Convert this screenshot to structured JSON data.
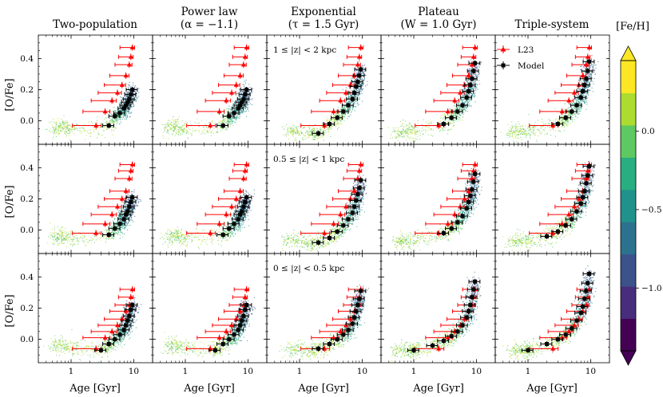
{
  "chart_data": {
    "type": "scatter",
    "figure_layout": {
      "rows": 3,
      "cols": 5,
      "shared_x": true,
      "shared_y": true
    },
    "column_titles": [
      [
        "Two-population"
      ],
      [
        "Power law",
        "(α = −1.1)"
      ],
      [
        "Exponential",
        "(τ = 1.5 Gyr)"
      ],
      [
        "Plateau",
        "(W = 1.0 Gyr)"
      ],
      [
        "Triple-system"
      ]
    ],
    "row_annotations": [
      "1 ≤ |z| < 2 kpc",
      "0.5 ≤ |z| < 1 kpc",
      "0 ≤ |z| < 0.5 kpc"
    ],
    "xlabel": "Age [Gyr]",
    "ylabel": "[O/Fe]",
    "xscale": "log",
    "xlim": [
      0.3,
      20
    ],
    "ylim": [
      -0.15,
      0.55
    ],
    "xticks": [
      1,
      10
    ],
    "xticklabels": [
      "1",
      "10"
    ],
    "yticks": [
      0.0,
      0.2,
      0.4
    ],
    "yticklabels": [
      "0.0",
      "0.2",
      "0.4"
    ],
    "legend": {
      "location": "top-right of column 5, row 1",
      "entries": [
        {
          "label": "L23",
          "color": "#ff0000",
          "marker": "triangle"
        },
        {
          "label": "Model",
          "color": "#000000",
          "marker": "square"
        }
      ]
    },
    "colorbar": {
      "label": "[Fe/H]",
      "range": [
        -1.4,
        0.45
      ],
      "ticks": [
        0.0,
        -0.5,
        -1.0
      ],
      "ticklabels": [
        "0.0",
        "−0.5",
        "−1.0"
      ],
      "colors": [
        "#440154",
        "#472d7b",
        "#3b528b",
        "#2c728e",
        "#21918c",
        "#28ae80",
        "#5ec962",
        "#addc30",
        "#fde725"
      ],
      "extend": "both"
    },
    "series": [
      {
        "name": "L23",
        "color": "#ff0000",
        "ages": [
          9.5,
          9.0,
          8.5,
          7.5,
          6.5,
          5.5,
          4.5,
          3.5,
          2.5
        ],
        "errors": [
          0.25,
          0.25,
          0.3,
          0.35,
          0.4,
          0.45,
          0.5,
          0.55,
          0.6
        ],
        "rows": [
          [
            0.47,
            0.41,
            0.36,
            0.29,
            0.23,
            0.18,
            0.13,
            0.06,
            -0.03
          ],
          [
            0.42,
            0.38,
            0.33,
            0.25,
            0.2,
            0.15,
            0.1,
            0.04,
            -0.02
          ],
          [
            0.32,
            0.27,
            0.22,
            0.18,
            0.13,
            0.09,
            0.05,
            0.01,
            -0.06
          ]
        ]
      },
      {
        "name": "Model",
        "color": "#000000",
        "ages": [
          9.5,
          9.0,
          8.5,
          8.0,
          7.5,
          7.0,
          6.0,
          5.0,
          4.0,
          3.0,
          2.0,
          1.0
        ],
        "cols": [
          {
            "rows": [
              [
                0.2,
                0.17,
                0.14,
                0.12,
                0.1,
                0.08,
                0.05,
                0.03,
                -0.03
              ],
              [
                0.21,
                0.18,
                0.15,
                0.12,
                0.1,
                0.07,
                0.04,
                0.01,
                -0.03
              ],
              [
                0.22,
                0.19,
                0.15,
                0.12,
                0.09,
                0.06,
                0.03,
                0.0,
                -0.03,
                -0.07
              ]
            ]
          },
          {
            "rows": [
              [
                0.2,
                0.17,
                0.14,
                0.12,
                0.1,
                0.08,
                0.05,
                0.03,
                -0.03
              ],
              [
                0.21,
                0.18,
                0.15,
                0.12,
                0.1,
                0.07,
                0.04,
                0.01,
                -0.03
              ],
              [
                0.22,
                0.19,
                0.15,
                0.12,
                0.09,
                0.06,
                0.03,
                0.0,
                -0.03,
                -0.07
              ]
            ]
          },
          {
            "rows": [
              [
                0.33,
                0.29,
                0.25,
                0.22,
                0.18,
                0.14,
                0.1,
                0.06,
                0.02,
                -0.02,
                -0.08
              ],
              [
                0.32,
                0.27,
                0.23,
                0.19,
                0.15,
                0.11,
                0.07,
                0.03,
                -0.01,
                -0.05,
                -0.08
              ],
              [
                0.31,
                0.26,
                0.22,
                0.18,
                0.14,
                0.1,
                0.06,
                0.03,
                0.0,
                -0.03,
                -0.06
              ]
            ]
          },
          {
            "rows": [
              [
                0.37,
                0.32,
                0.27,
                0.23,
                0.19,
                0.15,
                0.1,
                0.06,
                0.02,
                -0.02
              ],
              [
                0.36,
                0.31,
                0.26,
                0.22,
                0.18,
                0.14,
                0.09,
                0.05,
                0.01,
                -0.02
              ],
              [
                0.37,
                0.32,
                0.27,
                0.22,
                0.18,
                0.14,
                0.09,
                0.05,
                0.02,
                -0.01,
                -0.04,
                -0.07
              ]
            ]
          },
          {
            "rows": [
              [
                0.38,
                0.32,
                0.27,
                0.23,
                0.19,
                0.15,
                0.1,
                0.06,
                0.02,
                -0.02
              ],
              [
                0.41,
                0.35,
                0.3,
                0.25,
                0.21,
                0.17,
                0.12,
                0.07,
                0.03,
                -0.01,
                -0.04
              ],
              [
                0.42,
                0.36,
                0.31,
                0.26,
                0.21,
                0.17,
                0.12,
                0.07,
                0.03,
                0.0,
                -0.03,
                -0.07
              ]
            ]
          }
        ]
      }
    ],
    "cloud_tails": [
      [
        [
          0.7,
          -0.03
        ],
        [
          0.5,
          -0.05
        ],
        [
          1.0,
          -0.06
        ]
      ],
      [
        [
          0.7,
          -0.03
        ],
        [
          0.5,
          -0.05
        ],
        [
          1.0,
          -0.06
        ]
      ],
      [
        [
          0.9,
          -0.06
        ],
        [
          0.6,
          -0.07
        ],
        [
          1.5,
          -0.08
        ]
      ],
      [
        [
          0.7,
          -0.06
        ],
        [
          0.5,
          -0.08
        ],
        [
          1.0,
          -0.07
        ]
      ],
      [
        [
          0.7,
          -0.06
        ],
        [
          0.5,
          -0.08
        ],
        [
          1.0,
          -0.07
        ]
      ]
    ]
  }
}
